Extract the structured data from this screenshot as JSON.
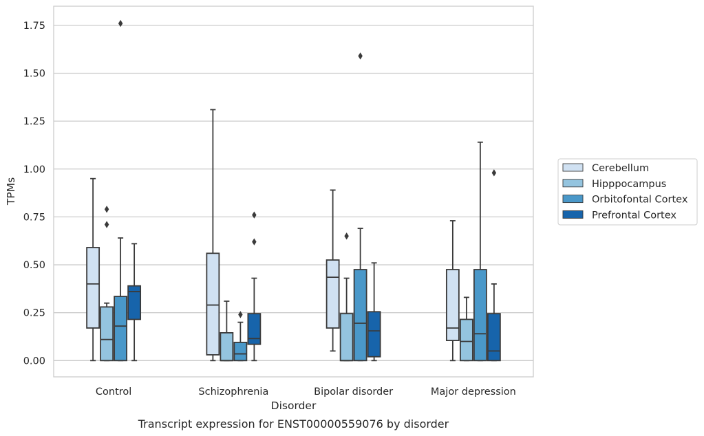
{
  "chart_data": {
    "type": "box",
    "caption": "Transcript expression for ENST00000559076 by disorder",
    "xlabel": "Disorder",
    "ylabel": "TPMs",
    "ylim": [
      -0.085,
      1.85
    ],
    "yticks": [
      0.0,
      0.25,
      0.5,
      0.75,
      1.0,
      1.25,
      1.5,
      1.75
    ],
    "ytick_labels": [
      "0.00",
      "0.25",
      "0.50",
      "0.75",
      "1.00",
      "1.25",
      "1.50",
      "1.75"
    ],
    "categories": [
      "Control",
      "Schizophrenia",
      "Bipolar disorder",
      "Major depression"
    ],
    "grid": "horizontal",
    "legend_position": "right",
    "colors": {
      "Cerebellum": "#d0e1f2",
      "Hipppocampus": "#94c4df",
      "Orbitofontal Cortex": "#4a98c9",
      "Prefrontal Cortex": "#1764ab",
      "box_edge": "#3a3a3a",
      "grid": "#cccccc"
    },
    "series": [
      {
        "name": "Cerebellum",
        "boxes": [
          {
            "whislo": 0.0,
            "q1": 0.17,
            "med": 0.4,
            "q3": 0.59,
            "whishi": 0.95,
            "fliers": []
          },
          {
            "whislo": 0.0,
            "q1": 0.03,
            "med": 0.29,
            "q3": 0.56,
            "whishi": 1.31,
            "fliers": []
          },
          {
            "whislo": 0.05,
            "q1": 0.17,
            "med": 0.435,
            "q3": 0.525,
            "whishi": 0.89,
            "fliers": []
          },
          {
            "whislo": 0.0,
            "q1": 0.105,
            "med": 0.17,
            "q3": 0.475,
            "whishi": 0.73,
            "fliers": []
          }
        ]
      },
      {
        "name": "Hipppocampus",
        "boxes": [
          {
            "whislo": 0.0,
            "q1": 0.0,
            "med": 0.11,
            "q3": 0.28,
            "whishi": 0.3,
            "fliers": [
              0.71,
              0.79
            ]
          },
          {
            "whislo": 0.0,
            "q1": 0.0,
            "med": 0.0,
            "q3": 0.145,
            "whishi": 0.31,
            "fliers": []
          },
          {
            "whislo": 0.0,
            "q1": 0.0,
            "med": 0.0,
            "q3": 0.245,
            "whishi": 0.43,
            "fliers": [
              0.65
            ]
          },
          {
            "whislo": 0.0,
            "q1": 0.0,
            "med": 0.1,
            "q3": 0.215,
            "whishi": 0.33,
            "fliers": []
          }
        ]
      },
      {
        "name": "Orbitofontal Cortex",
        "boxes": [
          {
            "whislo": 0.0,
            "q1": 0.0,
            "med": 0.18,
            "q3": 0.335,
            "whishi": 0.64,
            "fliers": [
              1.76
            ]
          },
          {
            "whislo": 0.0,
            "q1": 0.0,
            "med": 0.035,
            "q3": 0.095,
            "whishi": 0.2,
            "fliers": [
              0.24
            ]
          },
          {
            "whislo": 0.0,
            "q1": 0.0,
            "med": 0.195,
            "q3": 0.475,
            "whishi": 0.69,
            "fliers": [
              1.59
            ]
          },
          {
            "whislo": 0.0,
            "q1": 0.0,
            "med": 0.14,
            "q3": 0.475,
            "whishi": 1.14,
            "fliers": []
          }
        ]
      },
      {
        "name": "Prefrontal Cortex",
        "boxes": [
          {
            "whislo": 0.0,
            "q1": 0.215,
            "med": 0.36,
            "q3": 0.39,
            "whishi": 0.61,
            "fliers": []
          },
          {
            "whislo": 0.0,
            "q1": 0.085,
            "med": 0.115,
            "q3": 0.245,
            "whishi": 0.43,
            "fliers": [
              0.62,
              0.76
            ]
          },
          {
            "whislo": 0.0,
            "q1": 0.02,
            "med": 0.155,
            "q3": 0.255,
            "whishi": 0.51,
            "fliers": []
          },
          {
            "whislo": 0.0,
            "q1": 0.0,
            "med": 0.05,
            "q3": 0.245,
            "whishi": 0.4,
            "fliers": [
              0.98
            ]
          }
        ]
      }
    ]
  }
}
